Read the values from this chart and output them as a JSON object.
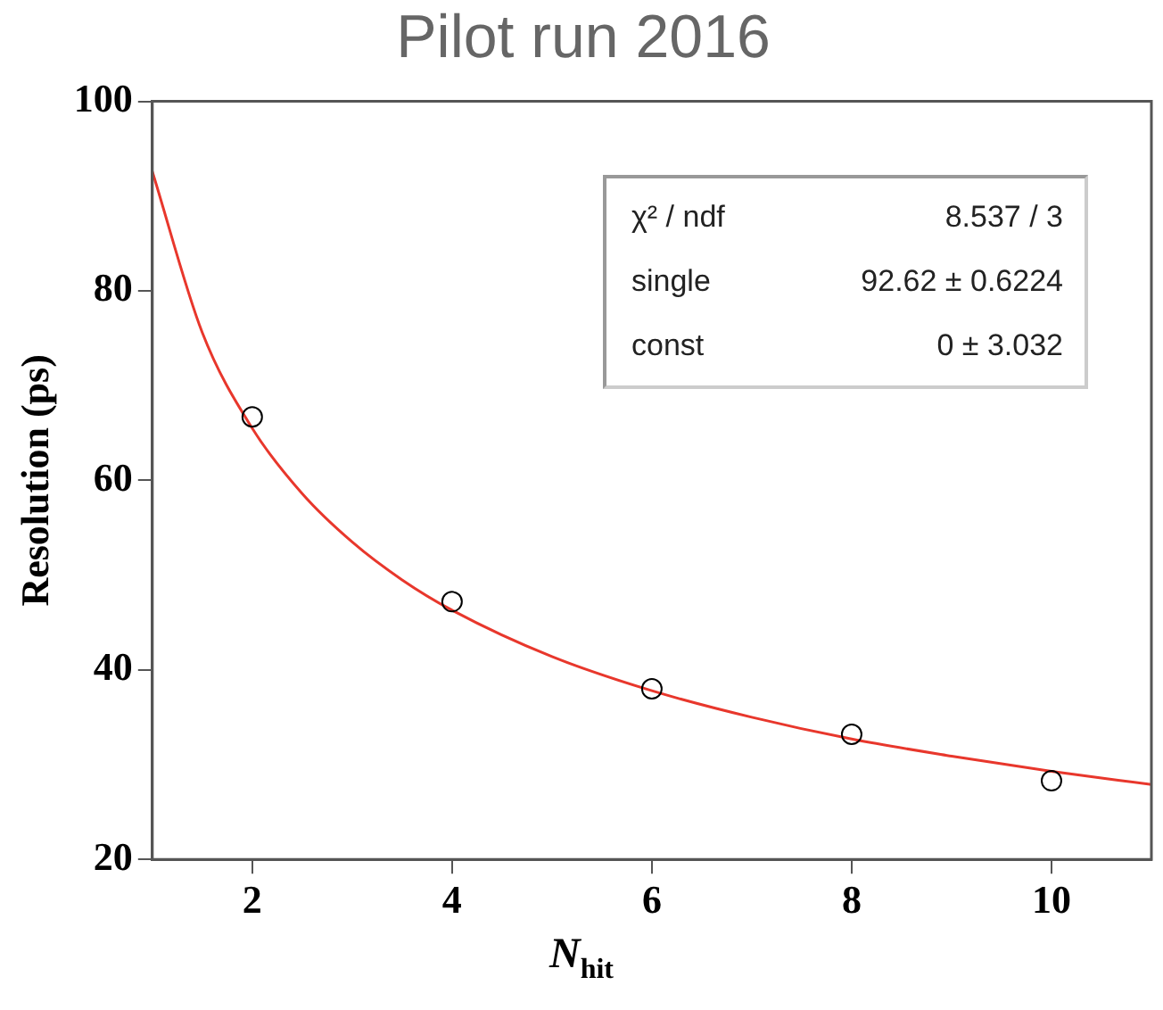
{
  "chart_data": {
    "type": "scatter",
    "title": "Pilot run 2016",
    "xlabel": "N$_{hit}$",
    "ylabel": "Resolution (ps)",
    "xlim": [
      1,
      11
    ],
    "xticks": [
      2,
      4,
      6,
      8,
      10
    ],
    "ylim": [
      20,
      100
    ],
    "yticks": [
      20,
      40,
      60,
      80,
      100
    ],
    "grid": false,
    "legend": false,
    "marker": "circle",
    "series": [
      {
        "color": "#000000",
        "x": [
          2,
          4,
          6,
          8,
          10
        ],
        "values": [
          66.7,
          47.2,
          38,
          33.2,
          28.3
        ]
      },
      {
        "type": "line",
        "color": "#e8372c",
        "marker": "none",
        "line_style": "solid",
        "x": [
          1,
          1.5,
          2,
          2.5,
          3,
          3.5,
          4,
          5,
          6,
          7,
          8,
          9,
          10,
          11
        ],
        "values": [
          92.6,
          75.6,
          65.5,
          58.6,
          53.5,
          49.5,
          46.3,
          41.4,
          37.8,
          35.0,
          32.7,
          30.9,
          29.3,
          27.9
        ]
      }
    ],
    "annotations": [
      "χ² / ndf",
      "8.537 / 3",
      "single",
      "92.62 ± 0.6224",
      "const",
      "0 ± 3.032"
    ]
  }
}
